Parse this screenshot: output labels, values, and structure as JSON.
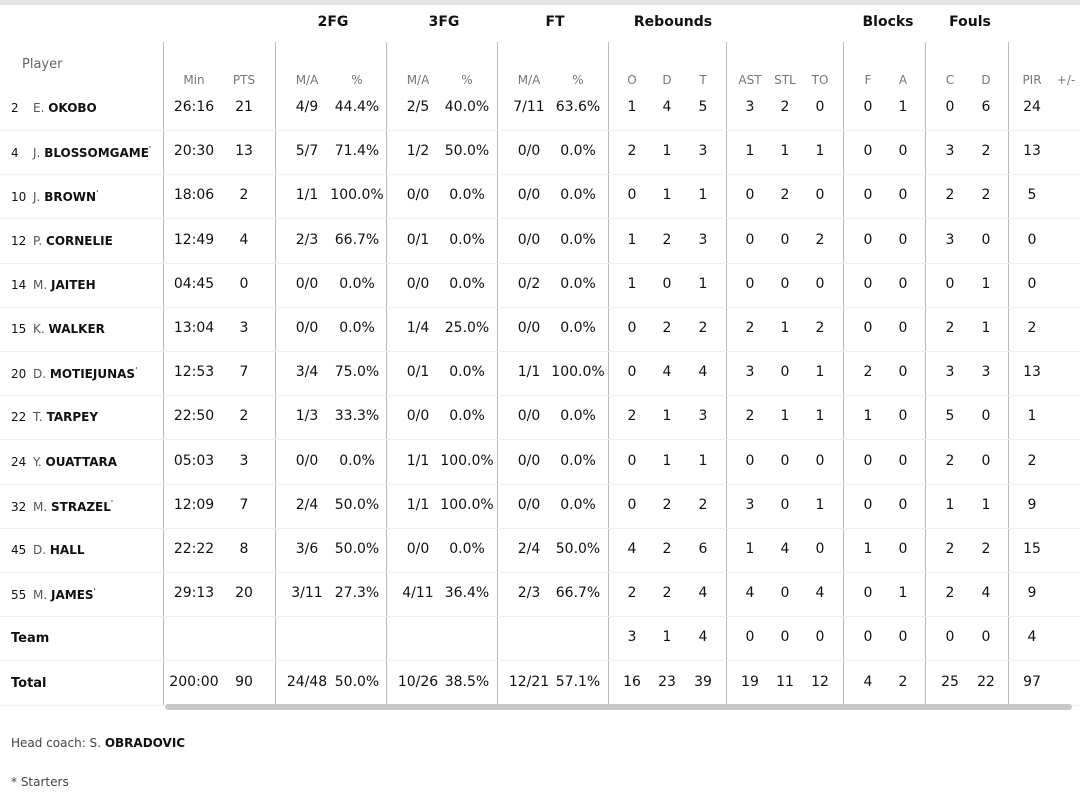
{
  "groups": {
    "fg2": "2FG",
    "fg3": "3FG",
    "ft": "FT",
    "reb": "Rebounds",
    "blk": "Blocks",
    "fouls": "Fouls"
  },
  "headers": {
    "player": "Player",
    "min": "Min",
    "pts": "PTS",
    "ma": "M/A",
    "pct": "%",
    "o": "O",
    "d": "D",
    "t": "T",
    "ast": "AST",
    "stl": "STL",
    "to": "TO",
    "f": "F",
    "a": "A",
    "c": "C",
    "dd": "D",
    "pir": "PIR",
    "pm": "+/-"
  },
  "rows": [
    {
      "num": "2",
      "first": "E.",
      "last": "OKOBO",
      "starter": false,
      "v": [
        "26:16",
        "21",
        "4/9",
        "44.4%",
        "2/5",
        "40.0%",
        "7/11",
        "63.6%",
        "1",
        "4",
        "5",
        "3",
        "2",
        "0",
        "0",
        "1",
        "0",
        "6",
        "24",
        ""
      ]
    },
    {
      "num": "4",
      "first": "J.",
      "last": "BLOSSOMGAME",
      "starter": true,
      "v": [
        "20:30",
        "13",
        "5/7",
        "71.4%",
        "1/2",
        "50.0%",
        "0/0",
        "0.0%",
        "2",
        "1",
        "3",
        "1",
        "1",
        "1",
        "0",
        "0",
        "3",
        "2",
        "13",
        ""
      ]
    },
    {
      "num": "10",
      "first": "J.",
      "last": "BROWN",
      "starter": true,
      "v": [
        "18:06",
        "2",
        "1/1",
        "100.0%",
        "0/0",
        "0.0%",
        "0/0",
        "0.0%",
        "0",
        "1",
        "1",
        "0",
        "2",
        "0",
        "0",
        "0",
        "2",
        "2",
        "5",
        ""
      ]
    },
    {
      "num": "12",
      "first": "P.",
      "last": "CORNELIE",
      "starter": false,
      "v": [
        "12:49",
        "4",
        "2/3",
        "66.7%",
        "0/1",
        "0.0%",
        "0/0",
        "0.0%",
        "1",
        "2",
        "3",
        "0",
        "0",
        "2",
        "0",
        "0",
        "3",
        "0",
        "0",
        ""
      ]
    },
    {
      "num": "14",
      "first": "M.",
      "last": "JAITEH",
      "starter": false,
      "v": [
        "04:45",
        "0",
        "0/0",
        "0.0%",
        "0/0",
        "0.0%",
        "0/2",
        "0.0%",
        "1",
        "0",
        "1",
        "0",
        "0",
        "0",
        "0",
        "0",
        "0",
        "1",
        "0",
        ""
      ]
    },
    {
      "num": "15",
      "first": "K.",
      "last": "WALKER",
      "starter": false,
      "v": [
        "13:04",
        "3",
        "0/0",
        "0.0%",
        "1/4",
        "25.0%",
        "0/0",
        "0.0%",
        "0",
        "2",
        "2",
        "2",
        "1",
        "2",
        "0",
        "0",
        "2",
        "1",
        "2",
        ""
      ]
    },
    {
      "num": "20",
      "first": "D.",
      "last": "MOTIEJUNAS",
      "starter": true,
      "v": [
        "12:53",
        "7",
        "3/4",
        "75.0%",
        "0/1",
        "0.0%",
        "1/1",
        "100.0%",
        "0",
        "4",
        "4",
        "3",
        "0",
        "1",
        "2",
        "0",
        "3",
        "3",
        "13",
        ""
      ]
    },
    {
      "num": "22",
      "first": "T.",
      "last": "TARPEY",
      "starter": false,
      "v": [
        "22:50",
        "2",
        "1/3",
        "33.3%",
        "0/0",
        "0.0%",
        "0/0",
        "0.0%",
        "2",
        "1",
        "3",
        "2",
        "1",
        "1",
        "1",
        "0",
        "5",
        "0",
        "1",
        ""
      ]
    },
    {
      "num": "24",
      "first": "Y.",
      "last": "OUATTARA",
      "starter": false,
      "v": [
        "05:03",
        "3",
        "0/0",
        "0.0%",
        "1/1",
        "100.0%",
        "0/0",
        "0.0%",
        "0",
        "1",
        "1",
        "0",
        "0",
        "0",
        "0",
        "0",
        "2",
        "0",
        "2",
        ""
      ]
    },
    {
      "num": "32",
      "first": "M.",
      "last": "STRAZEL",
      "starter": true,
      "v": [
        "12:09",
        "7",
        "2/4",
        "50.0%",
        "1/1",
        "100.0%",
        "0/0",
        "0.0%",
        "0",
        "2",
        "2",
        "3",
        "0",
        "1",
        "0",
        "0",
        "1",
        "1",
        "9",
        ""
      ]
    },
    {
      "num": "45",
      "first": "D.",
      "last": "HALL",
      "starter": false,
      "v": [
        "22:22",
        "8",
        "3/6",
        "50.0%",
        "0/0",
        "0.0%",
        "2/4",
        "50.0%",
        "4",
        "2",
        "6",
        "1",
        "4",
        "0",
        "1",
        "0",
        "2",
        "2",
        "15",
        ""
      ]
    },
    {
      "num": "55",
      "first": "M.",
      "last": "JAMES",
      "starter": true,
      "v": [
        "29:13",
        "20",
        "3/11",
        "27.3%",
        "4/11",
        "36.4%",
        "2/3",
        "66.7%",
        "2",
        "2",
        "4",
        "4",
        "0",
        "4",
        "0",
        "1",
        "2",
        "4",
        "9",
        ""
      ]
    },
    {
      "num": "",
      "first": "",
      "last": "Team",
      "starter": false,
      "label": true,
      "v": [
        "",
        "",
        "",
        "",
        "",
        "",
        "",
        "",
        "3",
        "1",
        "4",
        "0",
        "0",
        "0",
        "0",
        "0",
        "0",
        "0",
        "4",
        ""
      ]
    },
    {
      "num": "",
      "first": "",
      "last": "Total",
      "starter": false,
      "label": true,
      "v": [
        "200:00",
        "90",
        "24/48",
        "50.0%",
        "10/26",
        "38.5%",
        "12/21",
        "57.1%",
        "16",
        "23",
        "39",
        "19",
        "11",
        "12",
        "4",
        "2",
        "25",
        "22",
        "97",
        ""
      ]
    }
  ],
  "footer": {
    "coach_label": "Head coach: S.",
    "coach_name": "OBRADOVIC",
    "starters_note": "* Starters"
  }
}
